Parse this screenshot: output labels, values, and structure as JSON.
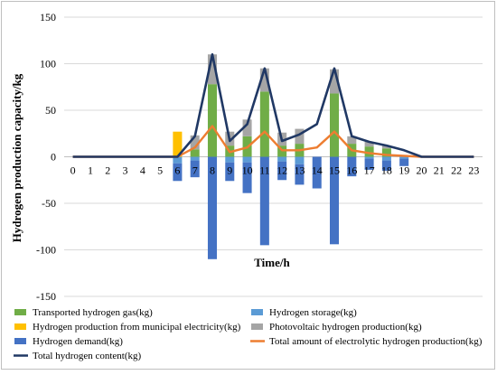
{
  "chart_data": {
    "type": "bar",
    "xlabel": "Time/h",
    "ylabel": "Hydrogen production capacity/kg",
    "ylim": [
      -150,
      150
    ],
    "yticks": [
      150,
      100,
      50,
      0,
      -50,
      -100,
      -150
    ],
    "grid": "horizontal",
    "legend_position": "bottom",
    "categories": [
      "0",
      "1",
      "2",
      "3",
      "4",
      "5",
      "6",
      "7",
      "8",
      "9",
      "10",
      "11",
      "12",
      "13",
      "14",
      "15",
      "16",
      "17",
      "18",
      "19",
      "20",
      "21",
      "22",
      "23"
    ],
    "series": [
      {
        "name": "Transported hydrogen gas(kg)",
        "kind": "bar",
        "color": "#70ad47",
        "values": [
          0,
          0,
          0,
          0,
          0,
          0,
          0,
          8,
          78,
          12,
          22,
          70,
          12,
          14,
          0,
          68,
          14,
          11,
          9,
          0,
          0,
          0,
          0,
          0
        ]
      },
      {
        "name": "Hydrogen storage(kg)",
        "kind": "bar",
        "color": "#5b9bd5",
        "values": [
          0,
          0,
          0,
          0,
          0,
          0,
          -7,
          -4,
          0,
          -6,
          -6,
          0,
          -5,
          -8,
          0,
          0,
          0,
          -2,
          -4,
          -2,
          0,
          0,
          0,
          0
        ]
      },
      {
        "name": "Hydrogen production from municipal electricity(kg)",
        "kind": "bar",
        "color": "#ffc000",
        "values": [
          0,
          0,
          0,
          0,
          0,
          0,
          27,
          0,
          0,
          0,
          0,
          0,
          0,
          0,
          0,
          0,
          0,
          0,
          0,
          0,
          0,
          0,
          0,
          0
        ]
      },
      {
        "name": "Photovoltaic hydrogen production(kg)",
        "kind": "bar",
        "color": "#a5a5a5",
        "values": [
          0,
          0,
          0,
          0,
          0,
          0,
          0,
          15,
          32,
          15,
          18,
          25,
          14,
          16,
          0,
          26,
          8,
          5,
          3,
          0,
          0,
          0,
          0,
          0
        ]
      },
      {
        "name": "Hydrogen demand(kg)",
        "kind": "bar",
        "color": "#4472c4",
        "values": [
          0,
          0,
          0,
          0,
          0,
          0,
          -19,
          -18,
          -110,
          -20,
          -33,
          -95,
          -20,
          -22,
          -34,
          -94,
          -21,
          -12,
          -11,
          -8,
          0,
          0,
          0,
          0
        ]
      },
      {
        "name": "Total amount of electrolytic hydrogen production(kg)",
        "kind": "line",
        "color": "#ed7d31",
        "values": [
          0,
          0,
          0,
          0,
          0,
          0,
          0,
          10,
          33,
          5,
          10,
          27,
          7,
          7,
          10,
          27,
          7,
          4,
          2,
          1,
          0,
          0,
          0,
          0
        ]
      },
      {
        "name": "Total hydrogen content(kg)",
        "kind": "line",
        "color": "#203864",
        "values": [
          0,
          0,
          0,
          0,
          0,
          0,
          0,
          22,
          110,
          17,
          35,
          95,
          17,
          24,
          35,
          95,
          22,
          16,
          12,
          7,
          0,
          0,
          0,
          0
        ]
      }
    ]
  }
}
